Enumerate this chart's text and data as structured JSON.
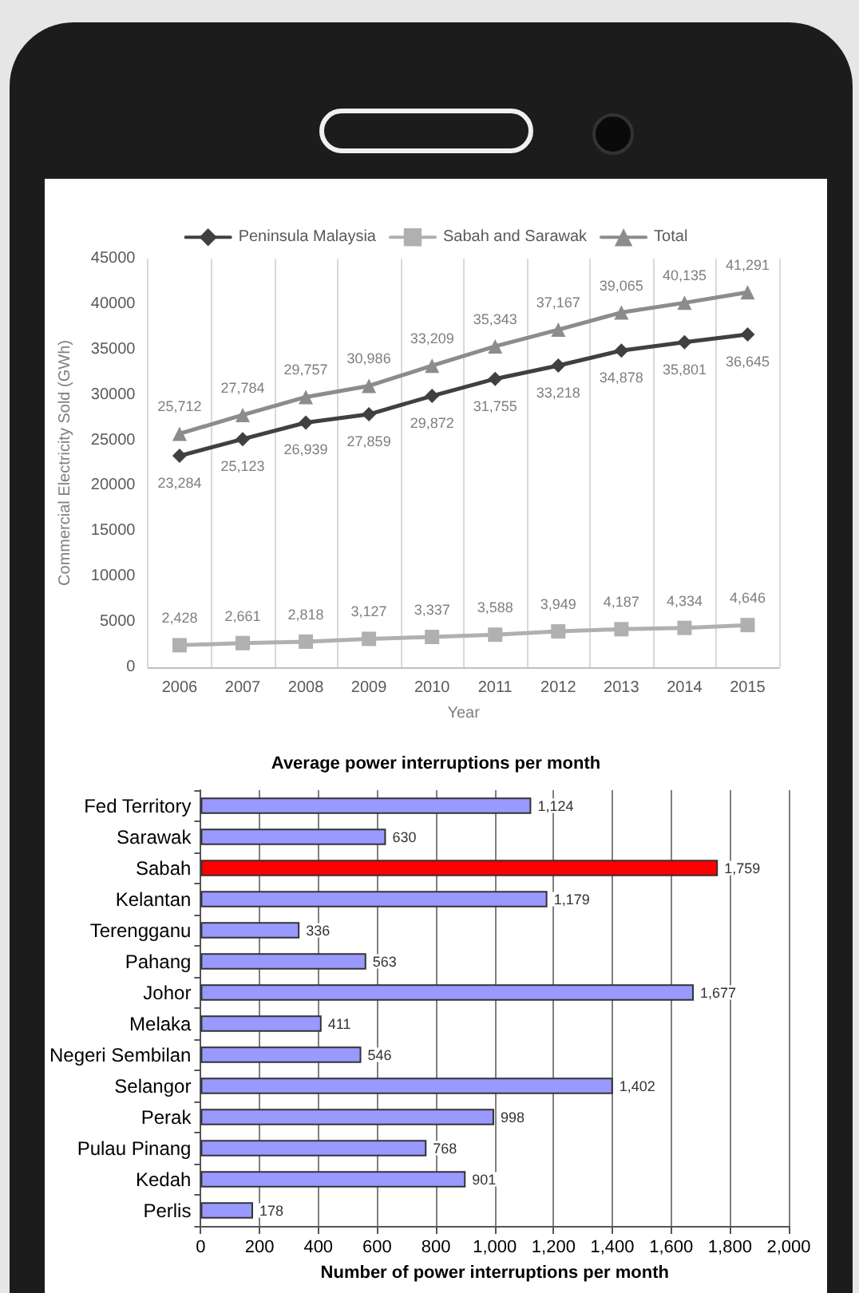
{
  "chart_data": [
    {
      "type": "line",
      "xlabel": "Year",
      "ylabel": "Commercial Electricity Sold (GWh)",
      "categories": [
        "2006",
        "2007",
        "2008",
        "2009",
        "2010",
        "2011",
        "2012",
        "2013",
        "2014",
        "2015"
      ],
      "series": [
        {
          "name": "Peninsula Malaysia",
          "color": "#404040",
          "marker": "diamond",
          "values": [
            23284,
            25123,
            26939,
            27859,
            29872,
            31755,
            33218,
            34878,
            35801,
            36645
          ],
          "value_labels": [
            "23,284",
            "25,123",
            "26,939",
            "27,859",
            "29,872",
            "31,755",
            "33,218",
            "34,878",
            "35,801",
            "36,645"
          ]
        },
        {
          "name": "Sabah and Sarawak",
          "color": "#b0b0b0",
          "marker": "square",
          "values": [
            2428,
            2661,
            2818,
            3127,
            3337,
            3588,
            3949,
            4187,
            4334,
            4646
          ],
          "value_labels": [
            "2,428",
            "2,661",
            "2,818",
            "3,127",
            "3,337",
            "3,588",
            "3,949",
            "4,187",
            "4,334",
            "4,646"
          ]
        },
        {
          "name": "Total",
          "color": "#8c8c8c",
          "marker": "triangle",
          "values": [
            25712,
            27784,
            29757,
            30986,
            33209,
            35343,
            37167,
            39065,
            40135,
            41291
          ],
          "value_labels": [
            "25,712",
            "27,784",
            "29,757",
            "30,986",
            "33,209",
            "35,343",
            "37,167",
            "39,065",
            "40,135",
            "41,291"
          ]
        }
      ],
      "ylim": [
        0,
        45000
      ],
      "yticks": [
        0,
        5000,
        10000,
        15000,
        20000,
        25000,
        30000,
        35000,
        40000,
        45000
      ],
      "grid": "x",
      "legend": "top",
      "line_style": "solid"
    },
    {
      "type": "bar",
      "orientation": "horizontal",
      "title": "Average power interruptions per month",
      "xlabel": "Number of power interruptions per month",
      "categories": [
        "Fed Territory",
        "Sarawak",
        "Sabah",
        "Kelantan",
        "Terengganu",
        "Pahang",
        "Johor",
        "Melaka",
        "Negeri Sembilan",
        "Selangor",
        "Perak",
        "Pulau Pinang",
        "Kedah",
        "Perlis"
      ],
      "values": [
        1124,
        630,
        1759,
        1179,
        336,
        563,
        1677,
        411,
        546,
        1402,
        998,
        768,
        901,
        178
      ],
      "value_labels": [
        "1,124",
        "630",
        "1,759",
        "1,179",
        "336",
        "563",
        "1,677",
        "411",
        "546",
        "1,402",
        "998",
        "768",
        "901",
        "178"
      ],
      "colors": [
        "#9999ff",
        "#9999ff",
        "#ff0000",
        "#9999ff",
        "#9999ff",
        "#9999ff",
        "#9999ff",
        "#9999ff",
        "#9999ff",
        "#9999ff",
        "#9999ff",
        "#9999ff",
        "#9999ff",
        "#9999ff"
      ],
      "xlim": [
        0,
        2000
      ],
      "xticks": [
        0,
        200,
        400,
        600,
        800,
        {
          "value": 1000,
          "label": "1,000"
        },
        {
          "value": 1200,
          "label": "1,200"
        },
        {
          "value": 1400,
          "label": "1,400"
        },
        {
          "value": 1600,
          "label": "1,600"
        },
        {
          "value": 1800,
          "label": "1,800"
        },
        {
          "value": 2000,
          "label": "2,000"
        }
      ],
      "grid": "x",
      "legend": false
    }
  ]
}
